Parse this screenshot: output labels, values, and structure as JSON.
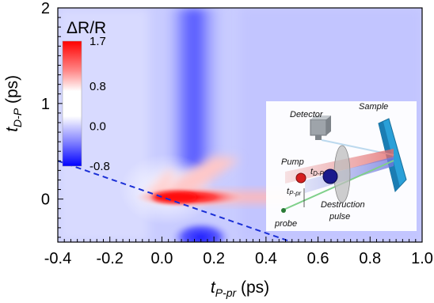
{
  "chart_data": {
    "type": "heatmap",
    "xlabel_main": "t",
    "xlabel_sub": "P-pr",
    "xlabel_unit": " (ps)",
    "ylabel_main": "t",
    "ylabel_sub": "D-P",
    "ylabel_unit": " (ps)",
    "xlim": [
      -0.4,
      1.0
    ],
    "ylim": [
      -0.45,
      2.0
    ],
    "x_ticks": [
      "-0.4",
      "-0.2",
      "0.0",
      "0.2",
      "0.4",
      "0.6",
      "0.8",
      "1.0"
    ],
    "x_tick_values": [
      -0.4,
      -0.2,
      0.0,
      0.2,
      0.4,
      0.6,
      0.8,
      1.0
    ],
    "y_ticks": [
      "0",
      "1",
      "2"
    ],
    "y_tick_values": [
      0,
      1,
      2
    ],
    "colorbar": {
      "title": "ΔR/R",
      "tick_labels": [
        "1.7",
        "0.8",
        "0.0",
        "-0.8"
      ],
      "tick_values": [
        1.7,
        0.8,
        0.0,
        -0.8
      ],
      "min": -0.8,
      "max": 1.7,
      "colors": {
        "max": "#ff0000",
        "mid": "#ffffff",
        "min": "#0000ff"
      }
    },
    "dashed_line": {
      "color": "#1a2fd6",
      "points": [
        [
          -0.4,
          0.4
        ],
        [
          0.5,
          -0.45
        ]
      ]
    },
    "features": [
      {
        "name": "positive peak",
        "x": 0.05,
        "y": 0.02,
        "value": 1.7
      },
      {
        "name": "negative band",
        "x": 0.08,
        "y_from": 0.3,
        "y_to": 2.0,
        "value": -0.5
      },
      {
        "name": "negative dip",
        "x": 0.15,
        "y": -0.4,
        "value": -0.8
      }
    ]
  },
  "inset": {
    "labels": {
      "detector": "Detector",
      "sample": "Sample",
      "pump": "Pump",
      "t_dp": "t",
      "t_dp_sub": "D-P",
      "t_ppr": "t",
      "t_ppr_sub": "P-pr",
      "destruction": "Destruction",
      "pulse": "pulse",
      "probe": "probe"
    },
    "colors": {
      "pump_beam": "#e89a9a",
      "destruction_beam": "#9aa3e8",
      "probe_beam": "#8fd69a",
      "sample": "#2aa0d8",
      "detector": "#9ea4aa"
    }
  }
}
